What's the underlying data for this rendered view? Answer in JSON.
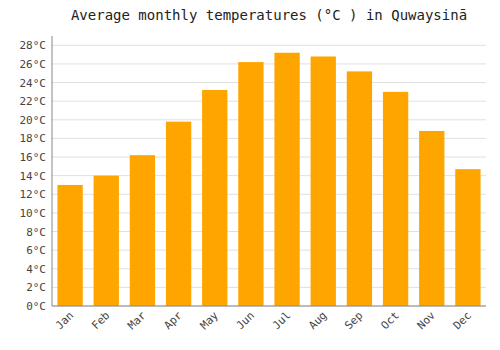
{
  "chart_data": {
    "type": "bar",
    "title": "Average monthly temperatures (°C ) in Quwaysinā",
    "categories": [
      "Jan",
      "Feb",
      "Mar",
      "Apr",
      "May",
      "Jun",
      "Jul",
      "Aug",
      "Sep",
      "Oct",
      "Nov",
      "Dec"
    ],
    "values": [
      13.0,
      14.0,
      16.2,
      19.8,
      23.2,
      26.2,
      27.2,
      26.8,
      25.2,
      23.0,
      18.8,
      14.7
    ],
    "color": "#FFA500",
    "ylim": [
      0,
      29
    ],
    "yticks": [
      {
        "value": 0,
        "label": "0°C"
      },
      {
        "value": 2,
        "label": "2°C"
      },
      {
        "value": 4,
        "label": "4°C"
      },
      {
        "value": 6,
        "label": "6°C"
      },
      {
        "value": 8,
        "label": "8°C"
      },
      {
        "value": 10,
        "label": "10°C"
      },
      {
        "value": 12,
        "label": "12°C"
      },
      {
        "value": 14,
        "label": "14°C"
      },
      {
        "value": 16,
        "label": "16°C"
      },
      {
        "value": 18,
        "label": "18°C"
      },
      {
        "value": 20,
        "label": "20°C"
      },
      {
        "value": 22,
        "label": "22°C"
      },
      {
        "value": 24,
        "label": "24°C"
      },
      {
        "value": 26,
        "label": "26°C"
      },
      {
        "value": 28,
        "label": "28°C"
      }
    ],
    "grid": true
  }
}
